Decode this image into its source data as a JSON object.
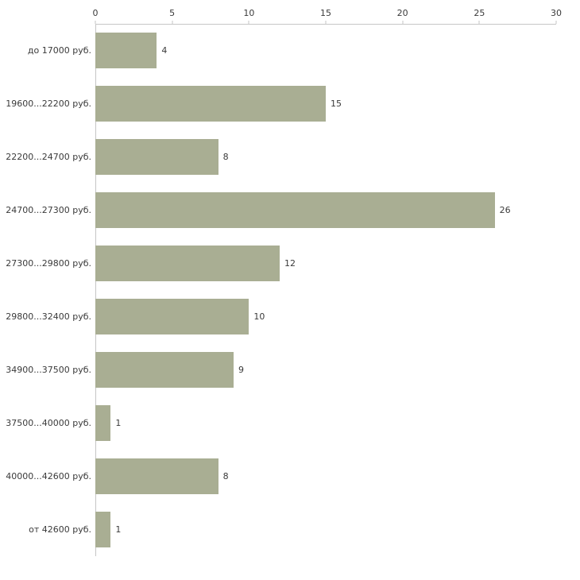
{
  "chart_data": {
    "type": "bar",
    "orientation": "horizontal",
    "title": "",
    "xlabel": "",
    "ylabel": "",
    "categories": [
      "до 17000 руб.",
      "19600...22200 руб.",
      "22200...24700 руб.",
      "24700...27300 руб.",
      "27300...29800 руб.",
      "29800...32400 руб.",
      "34900...37500 руб.",
      "37500...40000 руб.",
      "40000...42600 руб.",
      "от 42600 руб."
    ],
    "values": [
      4,
      15,
      8,
      26,
      12,
      10,
      9,
      1,
      8,
      1
    ],
    "xlim": [
      0,
      30
    ],
    "x_ticks": [
      0,
      5,
      10,
      15,
      20,
      25,
      30
    ],
    "grid": false,
    "legend": false,
    "bar_color": "#a9ae93",
    "axis_color": "#c6c6c6",
    "label_color": "#3a3a3a"
  }
}
